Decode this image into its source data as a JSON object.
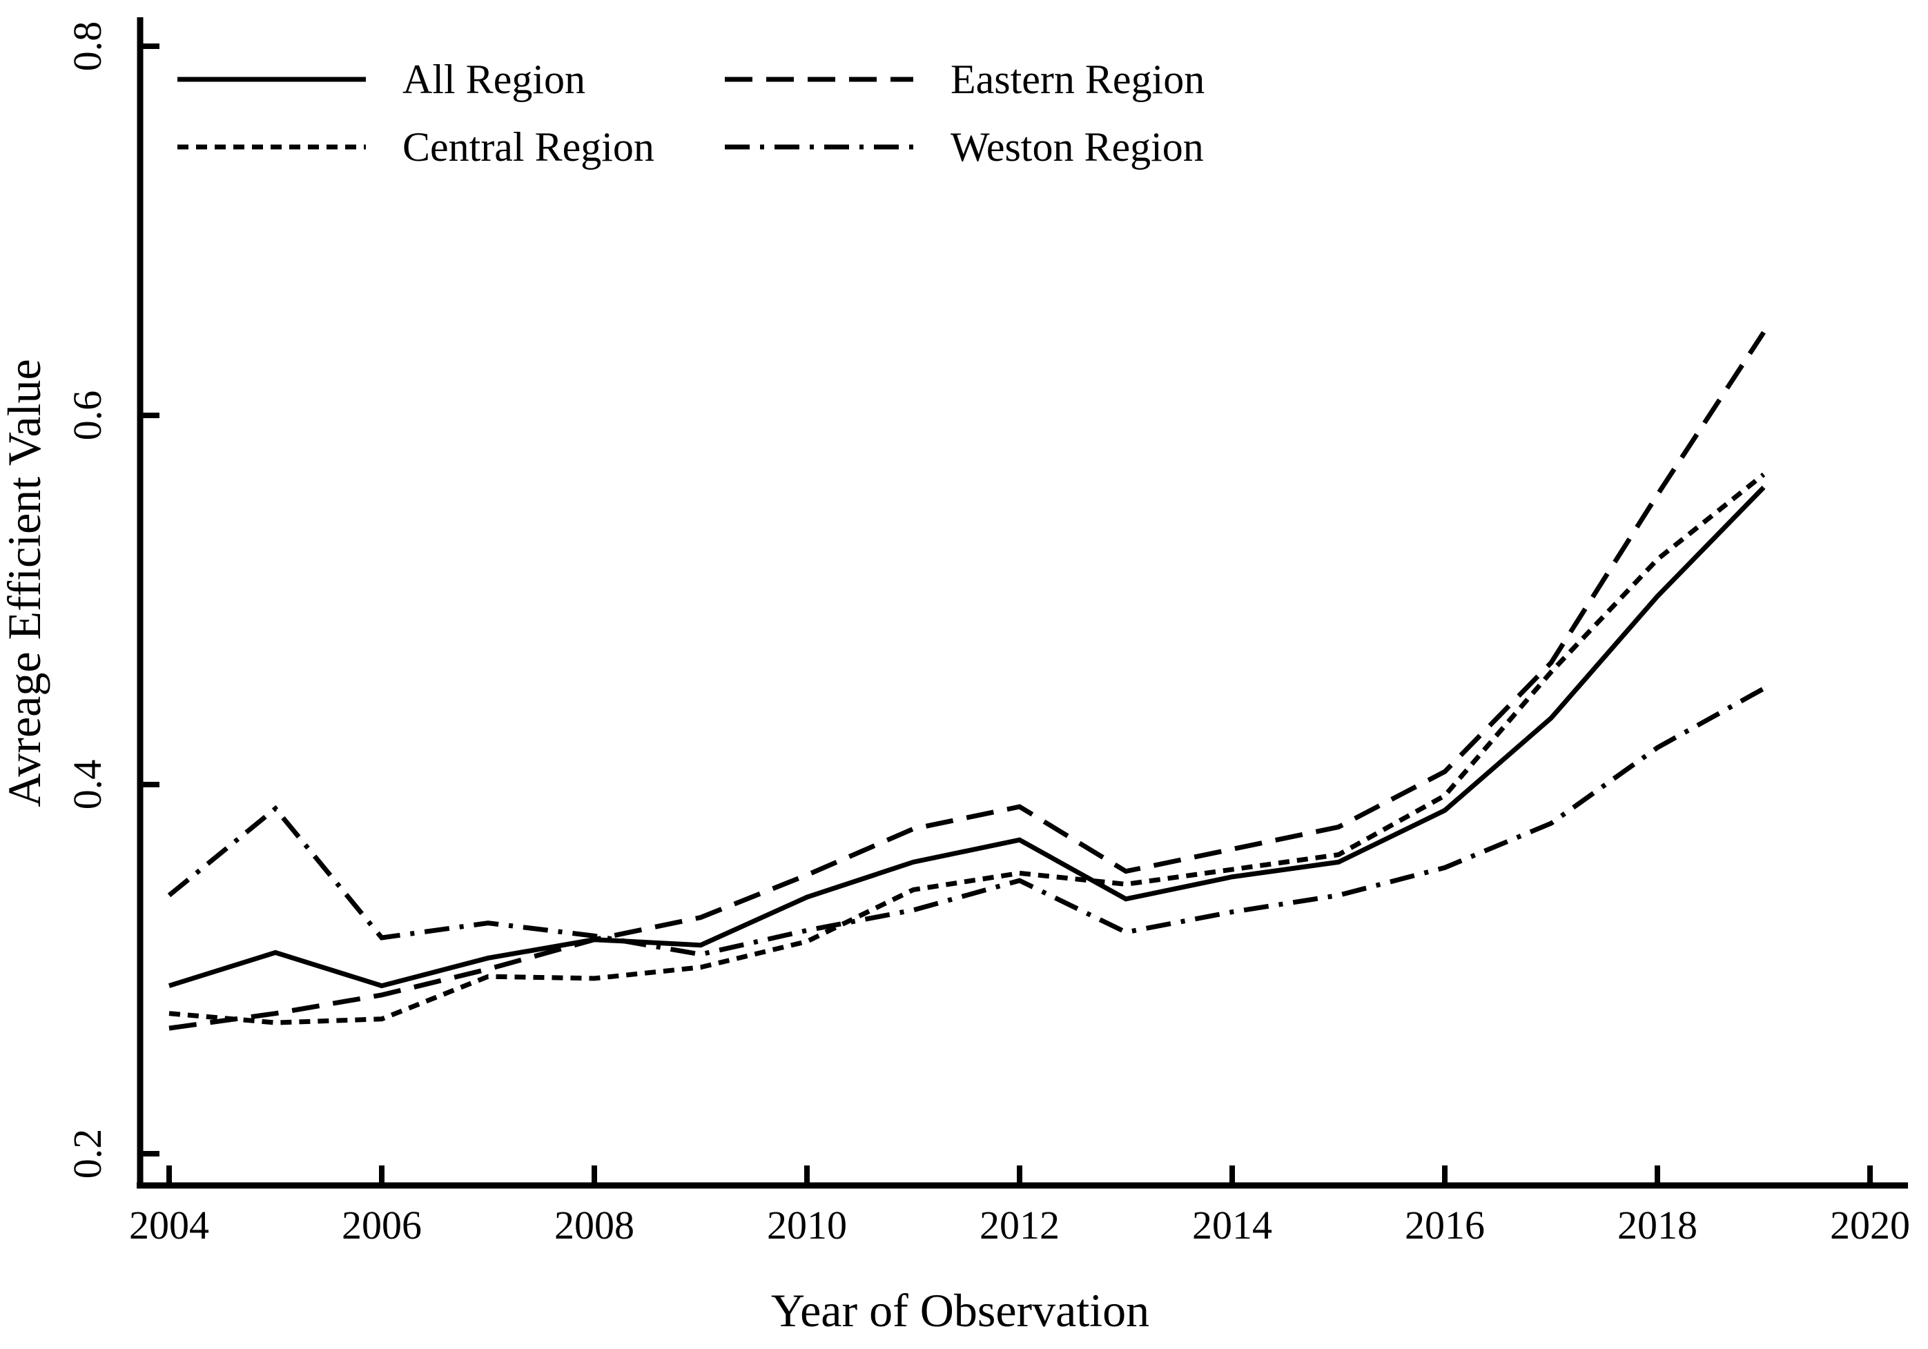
{
  "figure": {
    "background_color": "#ffffff",
    "line_color": "#000000"
  },
  "chart_data": {
    "type": "line",
    "title": "",
    "xlabel": "Year of Observation",
    "ylabel": "Avreage Efficient Value",
    "x": [
      2004,
      2005,
      2006,
      2007,
      2008,
      2009,
      2010,
      2011,
      2012,
      2013,
      2014,
      2015,
      2016,
      2017,
      2018,
      2019
    ],
    "series": [
      {
        "name": "All Region",
        "dash": "solid",
        "values": [
          0.291,
          0.309,
          0.291,
          0.306,
          0.316,
          0.313,
          0.339,
          0.358,
          0.37,
          0.338,
          0.35,
          0.358,
          0.386,
          0.436,
          0.502,
          0.561
        ]
      },
      {
        "name": "Central Region",
        "dash": "dotted",
        "values": [
          0.276,
          0.271,
          0.273,
          0.296,
          0.295,
          0.301,
          0.315,
          0.343,
          0.352,
          0.346,
          0.354,
          0.362,
          0.394,
          0.461,
          0.522,
          0.568
        ]
      },
      {
        "name": "Eastern Region",
        "dash": "dashed",
        "values": [
          0.268,
          0.276,
          0.286,
          0.3,
          0.316,
          0.328,
          0.351,
          0.376,
          0.388,
          0.353,
          0.365,
          0.377,
          0.407,
          0.466,
          0.557,
          0.645
        ]
      },
      {
        "name": "Weston Region",
        "dash": "dashdot",
        "values": [
          0.34,
          0.387,
          0.317,
          0.325,
          0.318,
          0.308,
          0.321,
          0.332,
          0.348,
          0.32,
          0.331,
          0.34,
          0.355,
          0.379,
          0.42,
          0.452
        ]
      }
    ],
    "x_ticks": [
      2004,
      2006,
      2008,
      2010,
      2012,
      2014,
      2016,
      2018,
      2020
    ],
    "y_ticks": [
      0.2,
      0.4,
      0.6,
      0.8
    ],
    "xlim": [
      2004,
      2020
    ],
    "ylim": [
      0.2,
      0.8
    ],
    "grid": false,
    "legend_position": "top-left",
    "legend": [
      {
        "label": "All Region",
        "dash": "solid"
      },
      {
        "label": "Eastern Region",
        "dash": "dashed"
      },
      {
        "label": "Central Region",
        "dash": "dotted"
      },
      {
        "label": "Weston Region",
        "dash": "dashdot"
      }
    ]
  }
}
